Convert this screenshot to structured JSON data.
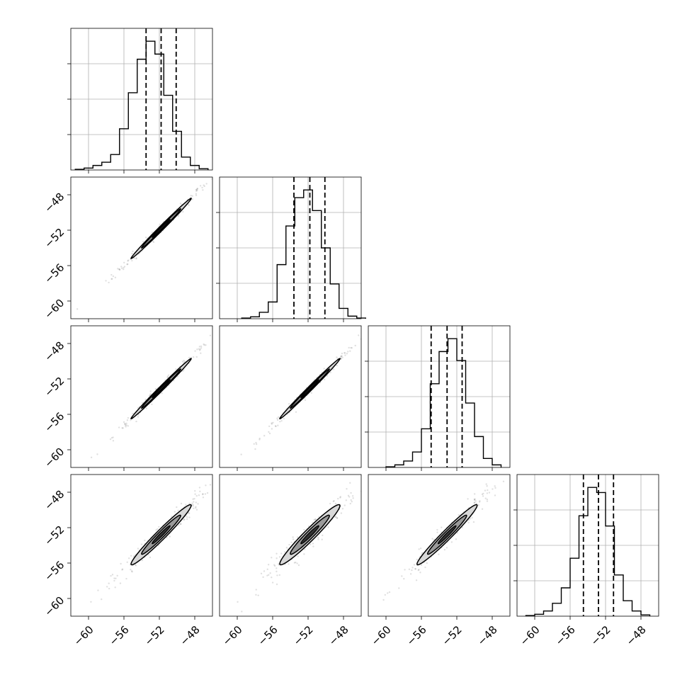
{
  "chart_data": {
    "type": "corner",
    "n_params": 4,
    "tick_values": [
      -60,
      -56,
      -52,
      -48
    ],
    "tick_labels": [
      "−60",
      "−56",
      "−52",
      "−48"
    ],
    "axis_range": [
      -62,
      -46
    ],
    "hist_ylim": [
      0,
      1.1
    ],
    "grid": true,
    "hist_bin_edges": [
      -60.5,
      -59.5,
      -58.5,
      -57.5,
      -56.5,
      -55.5,
      -54.5,
      -53.5,
      -52.5,
      -51.5,
      -50.5,
      -49.5,
      -48.5,
      -47.5,
      -46.5
    ],
    "panels_1d": [
      {
        "param": 0,
        "quantiles": [
          -53.5,
          -51.8,
          -50.1
        ],
        "counts": [
          0.005,
          0.015,
          0.035,
          0.06,
          0.12,
          0.32,
          0.6,
          0.86,
          1.0,
          0.9,
          0.58,
          0.3,
          0.1,
          0.035,
          0.01
        ],
        "bin_edges": [
          -61.5,
          -60.5,
          -59.5,
          -58.5,
          -57.5,
          -56.5,
          -55.5,
          -54.5,
          -53.5,
          -52.5,
          -51.5,
          -50.5,
          -49.5,
          -48.5,
          -47.5,
          -46.5
        ]
      },
      {
        "param": 1,
        "quantiles": [
          -53.6,
          -51.8,
          -50.1
        ],
        "counts": [
          0.005,
          0.015,
          0.05,
          0.13,
          0.42,
          0.72,
          0.94,
          1.0,
          0.84,
          0.55,
          0.27,
          0.08,
          0.02,
          0.005
        ],
        "bin_edges": [
          -59.5,
          -58.5,
          -57.5,
          -56.5,
          -55.5,
          -54.5,
          -53.5,
          -52.5,
          -51.5,
          -50.5,
          -49.5,
          -48.5,
          -47.5,
          -46.5,
          -45.5
        ]
      },
      {
        "param": 2,
        "quantiles": [
          -54.9,
          -53.1,
          -51.4
        ],
        "counts": [
          0.005,
          0.02,
          0.05,
          0.12,
          0.3,
          0.65,
          0.9,
          1.0,
          0.83,
          0.5,
          0.24,
          0.07,
          0.02
        ],
        "bin_edges": [
          -60.0,
          -59.0,
          -58.0,
          -57.0,
          -56.0,
          -55.0,
          -54.0,
          -53.0,
          -52.0,
          -51.0,
          -50.0,
          -49.0,
          -48.0,
          -47.0
        ]
      },
      {
        "param": 3,
        "quantiles": [
          -54.5,
          -52.8,
          -51.1
        ],
        "counts": [
          0.005,
          0.015,
          0.04,
          0.1,
          0.22,
          0.45,
          0.78,
          1.0,
          0.96,
          0.7,
          0.32,
          0.12,
          0.04,
          0.01
        ],
        "bin_edges": [
          -61.0,
          -60.0,
          -59.0,
          -58.0,
          -57.0,
          -56.0,
          -55.0,
          -54.0,
          -53.0,
          -52.0,
          -51.0,
          -50.0,
          -49.0,
          -48.0,
          -47.0
        ]
      }
    ],
    "panels_2d": [
      {
        "row": 1,
        "col": 0,
        "center": [
          -51.8,
          -51.8
        ],
        "sigma": [
          1.7,
          1.7
        ],
        "rho": 0.995,
        "scatter_x": [
          -61.2,
          -46.8
        ]
      },
      {
        "row": 2,
        "col": 0,
        "center": [
          -51.8,
          -53.1
        ],
        "sigma": [
          1.7,
          1.7
        ],
        "rho": 0.995,
        "scatter_x": [
          -61.2,
          -46.8
        ]
      },
      {
        "row": 2,
        "col": 1,
        "center": [
          -51.8,
          -53.1
        ],
        "sigma": [
          1.7,
          1.7
        ],
        "rho": 0.995,
        "scatter_x": [
          -60.6,
          -45.5
        ]
      },
      {
        "row": 3,
        "col": 0,
        "center": [
          -51.8,
          -52.8
        ],
        "sigma": [
          1.7,
          1.7
        ],
        "rho": 0.975,
        "scatter_x": [
          -61.2,
          -46.8
        ]
      },
      {
        "row": 3,
        "col": 1,
        "center": [
          -51.8,
          -52.8
        ],
        "sigma": [
          1.7,
          1.7
        ],
        "rho": 0.965,
        "scatter_x": [
          -60.6,
          -45.5
        ]
      },
      {
        "row": 3,
        "col": 2,
        "center": [
          -53.1,
          -52.8
        ],
        "sigma": [
          1.7,
          1.7
        ],
        "rho": 0.975,
        "scatter_x": [
          -61.2,
          -47.0
        ]
      }
    ]
  }
}
